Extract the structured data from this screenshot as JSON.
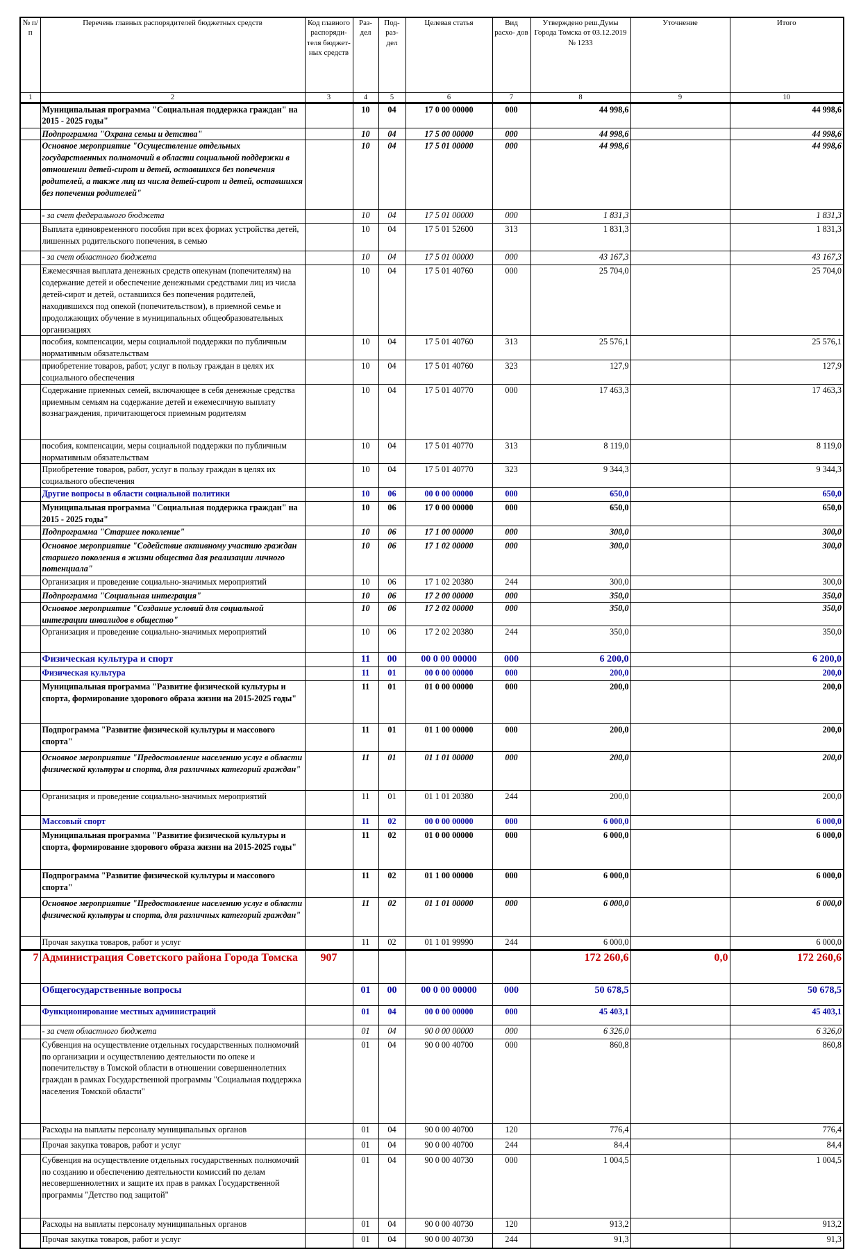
{
  "header": {
    "c1": "№ п/п",
    "c2": "Перечень главных распорядителей бюджетных средств",
    "c3": "Код главного распоряди- теля бюджет- ных средств",
    "c4": "Раз- дел",
    "c5": "Под- раз- дел",
    "c6": "Целевая статья",
    "c7": "Вид расхо- дов",
    "c8": "Утверждено реш.Думы Города Томска от 03.12.2019 № 1233",
    "c9": "Уточнение",
    "c10": "Итого"
  },
  "colnums": [
    "1",
    "2",
    "3",
    "4",
    "5",
    "6",
    "7",
    "8",
    "9",
    "10"
  ],
  "rows": [
    {
      "n": "",
      "name": "Муниципальная программа \"Социальная поддержка граждан\" на 2015 - 2025 годы\"",
      "code": "",
      "sec": "10",
      "sub": "04",
      "target": "17 0 00 00000",
      "vid": "000",
      "appr": "44 998,6",
      "adj": "",
      "total": "44 998,6"
    },
    {
      "n": "",
      "name": "Подпрограмма \"Охрана семьи и детства\"",
      "code": "",
      "sec": "10",
      "sub": "04",
      "target": "17 5 00 00000",
      "vid": "000",
      "appr": "44 998,6",
      "adj": "",
      "total": "44 998,6"
    },
    {
      "n": "",
      "name": "Основное мероприятие \"Осуществление отдельных государственных полномочий в области социальной поддержки в отношении детей-сирот и детей, оставшихся без попечения родителей, а также лиц из числа детей-сирот и детей, оставшихся без попечения родителей\"",
      "code": "",
      "sec": "10",
      "sub": "04",
      "target": "17 5 01 00000",
      "vid": "000",
      "appr": "44 998,6",
      "adj": "",
      "total": "44 998,6"
    },
    {
      "n": "",
      "name": "- за счет федерального бюджета",
      "code": "",
      "sec": "10",
      "sub": "04",
      "target": "17 5 01 00000",
      "vid": "000",
      "appr": "1 831,3",
      "adj": "",
      "total": "1 831,3"
    },
    {
      "n": "",
      "name": "Выплата единовременного пособия при всех формах устройства детей, лишенных родительского попечения, в семью",
      "code": "",
      "sec": "10",
      "sub": "04",
      "target": "17 5 01 52600",
      "vid": "313",
      "appr": "1 831,3",
      "adj": "",
      "total": "1 831,3"
    },
    {
      "n": "",
      "name": "- за счет областного бюджета",
      "code": "",
      "sec": "10",
      "sub": "04",
      "target": "17 5 01 00000",
      "vid": "000",
      "appr": "43 167,3",
      "adj": "",
      "total": "43 167,3"
    },
    {
      "n": "",
      "name": "Ежемесячная выплата денежных средств опекунам (попечителям) на содержание детей и обеспечение денежными средствами лиц из числа детей-сирот и детей, оставшихся без попечения родителей, находившихся под опекой (попечительством), в приемной семье и продолжающих обучение в муниципальных общеобразовательных организациях",
      "code": "",
      "sec": "10",
      "sub": "04",
      "target": "17 5 01 40760",
      "vid": "000",
      "appr": "25 704,0",
      "adj": "",
      "total": "25 704,0"
    },
    {
      "n": "",
      "name": "пособия, компенсации, меры социальной поддержки по публичным нормативным обязательствам",
      "code": "",
      "sec": "10",
      "sub": "04",
      "target": "17 5 01 40760",
      "vid": "313",
      "appr": "25 576,1",
      "adj": "",
      "total": "25 576,1"
    },
    {
      "n": "",
      "name": "приобретение товаров, работ, услуг в пользу граждан в целях их социального обеспечения",
      "code": "",
      "sec": "10",
      "sub": "04",
      "target": "17 5 01 40760",
      "vid": "323",
      "appr": "127,9",
      "adj": "",
      "total": "127,9"
    },
    {
      "n": "",
      "name": "Содержание приемных семей, включающее в себя денежные средства приемным семьям на содержание детей и ежемесячную выплату вознаграждения, причитающегося приемным родителям",
      "code": "",
      "sec": "10",
      "sub": "04",
      "target": "17 5 01 40770",
      "vid": "000",
      "appr": "17 463,3",
      "adj": "",
      "total": "17 463,3"
    },
    {
      "n": "",
      "name": "пособия, компенсации, меры социальной поддержки по публичным нормативным обязательствам",
      "code": "",
      "sec": "10",
      "sub": "04",
      "target": "17 5 01 40770",
      "vid": "313",
      "appr": "8 119,0",
      "adj": "",
      "total": "8 119,0"
    },
    {
      "n": "",
      "name": "Приобретение товаров, работ, услуг в пользу граждан в целях их социального обеспечения",
      "code": "",
      "sec": "10",
      "sub": "04",
      "target": "17 5 01 40770",
      "vid": "323",
      "appr": "9 344,3",
      "adj": "",
      "total": "9 344,3"
    },
    {
      "n": "",
      "name": "Другие вопросы в области социальной политики",
      "code": "",
      "sec": "10",
      "sub": "06",
      "target": "00 0 00 00000",
      "vid": "000",
      "appr": "650,0",
      "adj": "",
      "total": "650,0"
    },
    {
      "n": "",
      "name": "Муниципальная программа \"Социальная поддержка граждан\" на 2015 - 2025 годы\"",
      "code": "",
      "sec": "10",
      "sub": "06",
      "target": "17 0 00 00000",
      "vid": "000",
      "appr": "650,0",
      "adj": "",
      "total": "650,0"
    },
    {
      "n": "",
      "name": "Подпрограмма \"Старшее поколение\"",
      "code": "",
      "sec": "10",
      "sub": "06",
      "target": "17 1 00 00000",
      "vid": "000",
      "appr": "300,0",
      "adj": "",
      "total": "300,0"
    },
    {
      "n": "",
      "name": "Основное мероприятие \"Содействие активному участию граждан старшего поколения в жизни общества для реализации личного потенциала\"",
      "code": "",
      "sec": "10",
      "sub": "06",
      "target": "17 1 02 00000",
      "vid": "000",
      "appr": "300,0",
      "adj": "",
      "total": "300,0"
    },
    {
      "n": "",
      "name": "Организация и проведение социально-значимых мероприятий",
      "code": "",
      "sec": "10",
      "sub": "06",
      "target": "17 1 02 20380",
      "vid": "244",
      "appr": "300,0",
      "adj": "",
      "total": "300,0"
    },
    {
      "n": "",
      "name": "Подпрограмма \"Социальная интеграция\"",
      "code": "",
      "sec": "10",
      "sub": "06",
      "target": "17 2 00 00000",
      "vid": "000",
      "appr": "350,0",
      "adj": "",
      "total": "350,0"
    },
    {
      "n": "",
      "name": "Основное мероприятие \"Создание условий для социальной интеграции инвалидов в общество\"",
      "code": "",
      "sec": "10",
      "sub": "06",
      "target": "17 2 02 00000",
      "vid": "000",
      "appr": "350,0",
      "adj": "",
      "total": "350,0"
    },
    {
      "n": "",
      "name": "Организация и проведение социально-значимых мероприятий",
      "code": "",
      "sec": "10",
      "sub": "06",
      "target": "17 2 02 20380",
      "vid": "244",
      "appr": "350,0",
      "adj": "",
      "total": "350,0"
    },
    {
      "n": "",
      "name": "Физическая культура и спорт",
      "code": "",
      "sec": "11",
      "sub": "00",
      "target": "00 0 00 00000",
      "vid": "000",
      "appr": "6 200,0",
      "adj": "",
      "total": "6 200,0"
    },
    {
      "n": "",
      "name": "Физическая культура",
      "code": "",
      "sec": "11",
      "sub": "01",
      "target": "00 0 00 00000",
      "vid": "000",
      "appr": "200,0",
      "adj": "",
      "total": "200,0"
    },
    {
      "n": "",
      "name": "Муниципальная программа \"Развитие физической культуры и спорта, формирование здорового образа жизни на 2015-2025 годы\"",
      "code": "",
      "sec": "11",
      "sub": "01",
      "target": "01 0 00 00000",
      "vid": "000",
      "appr": "200,0",
      "adj": "",
      "total": "200,0"
    },
    {
      "n": "",
      "name": "Подпрограмма \"Развитие физической культуры и массового спорта\"",
      "code": "",
      "sec": "11",
      "sub": "01",
      "target": "01 1 00 00000",
      "vid": "000",
      "appr": "200,0",
      "adj": "",
      "total": "200,0"
    },
    {
      "n": "",
      "name": "Основное мероприятие \"Предоставление населению услуг в области физической культуры и спорта, для различных категорий граждан\"",
      "code": "",
      "sec": "11",
      "sub": "01",
      "target": "01 1 01 00000",
      "vid": "000",
      "appr": "200,0",
      "adj": "",
      "total": "200,0"
    },
    {
      "n": "",
      "name": "Организация и проведение социально-значимых мероприятий",
      "code": "",
      "sec": "11",
      "sub": "01",
      "target": "01 1 01 20380",
      "vid": "244",
      "appr": "200,0",
      "adj": "",
      "total": "200,0"
    },
    {
      "n": "",
      "name": "Массовый спорт",
      "code": "",
      "sec": "11",
      "sub": "02",
      "target": "00 0 00 00000",
      "vid": "000",
      "appr": "6 000,0",
      "adj": "",
      "total": "6 000,0"
    },
    {
      "n": "",
      "name": "Муниципальная программа \"Развитие физической культуры и спорта, формирование здорового образа жизни на 2015-2025 годы\"",
      "code": "",
      "sec": "11",
      "sub": "02",
      "target": "01 0 00 00000",
      "vid": "000",
      "appr": "6 000,0",
      "adj": "",
      "total": "6 000,0"
    },
    {
      "n": "",
      "name": "Подпрограмма \"Развитие физической культуры и массового спорта\"",
      "code": "",
      "sec": "11",
      "sub": "02",
      "target": "01 1 00 00000",
      "vid": "000",
      "appr": "6 000,0",
      "adj": "",
      "total": "6 000,0"
    },
    {
      "n": "",
      "name": "Основное мероприятие \"Предоставление населению услуг в области физической культуры и спорта, для различных категорий граждан\"",
      "code": "",
      "sec": "11",
      "sub": "02",
      "target": "01 1 01 00000",
      "vid": "000",
      "appr": "6 000,0",
      "adj": "",
      "total": "6 000,0"
    },
    {
      "n": "",
      "name": "Прочая закупка товаров, работ и услуг",
      "code": "",
      "sec": "11",
      "sub": "02",
      "target": "01 1 01 99990",
      "vid": "244",
      "appr": "6 000,0",
      "adj": "",
      "total": "6 000,0"
    },
    {
      "n": "7",
      "name": "Администрация Советского района Города Томска",
      "code": "907",
      "sec": "",
      "sub": "",
      "target": "",
      "vid": "",
      "appr": "172 260,6",
      "adj": "0,0",
      "total": "172 260,6"
    },
    {
      "n": "",
      "name": "Общегосударственные вопросы",
      "code": "",
      "sec": "01",
      "sub": "00",
      "target": "00 0 00 00000",
      "vid": "000",
      "appr": "50 678,5",
      "adj": "",
      "total": "50 678,5"
    },
    {
      "n": "",
      "name": "Функционирование местных администраций",
      "code": "",
      "sec": "01",
      "sub": "04",
      "target": "00 0 00 00000",
      "vid": "000",
      "appr": "45 403,1",
      "adj": "",
      "total": "45 403,1"
    },
    {
      "n": "",
      "name": "- за счет областного бюджета",
      "code": "",
      "sec": "01",
      "sub": "04",
      "target": "90 0 00 00000",
      "vid": "000",
      "appr": "6 326,0",
      "adj": "",
      "total": "6 326,0"
    },
    {
      "n": "",
      "name": "Субвенция на осуществление отдельных государственных полномочий по организации и осуществлению деятельности по опеке и попечительству в Томской области в отношении совершеннолетних граждан в рамках Государственной программы \"Социальная поддержка населения Томской области\"",
      "code": "",
      "sec": "01",
      "sub": "04",
      "target": "90 0 00 40700",
      "vid": "000",
      "appr": "860,8",
      "adj": "",
      "total": "860,8"
    },
    {
      "n": "",
      "name": "Расходы на выплаты персоналу муниципальных органов",
      "code": "",
      "sec": "01",
      "sub": "04",
      "target": "90 0 00 40700",
      "vid": "120",
      "appr": "776,4",
      "adj": "",
      "total": "776,4"
    },
    {
      "n": "",
      "name": "Прочая закупка товаров, работ и услуг",
      "code": "",
      "sec": "01",
      "sub": "04",
      "target": "90 0 00 40700",
      "vid": "244",
      "appr": "84,4",
      "adj": "",
      "total": "84,4"
    },
    {
      "n": "",
      "name": "Субвенция на осуществление отдельных государственных полномочий по созданию и обеспечению деятельности комиссий по делам несовершеннолетних и защите их прав в рамках Государственной программы \"Детство под защитой\"",
      "code": "",
      "sec": "01",
      "sub": "04",
      "target": "90 0 00 40730",
      "vid": "000",
      "appr": "1 004,5",
      "adj": "",
      "total": "1 004,5"
    },
    {
      "n": "",
      "name": "Расходы на выплаты персоналу муниципальных органов",
      "code": "",
      "sec": "01",
      "sub": "04",
      "target": "90 0 00 40730",
      "vid": "120",
      "appr": "913,2",
      "adj": "",
      "total": "913,2"
    },
    {
      "n": "",
      "name": "Прочая закупка товаров, работ и услуг",
      "code": "",
      "sec": "01",
      "sub": "04",
      "target": "90 0 00 40730",
      "vid": "244",
      "appr": "91,3",
      "adj": "",
      "total": "91,3"
    }
  ]
}
